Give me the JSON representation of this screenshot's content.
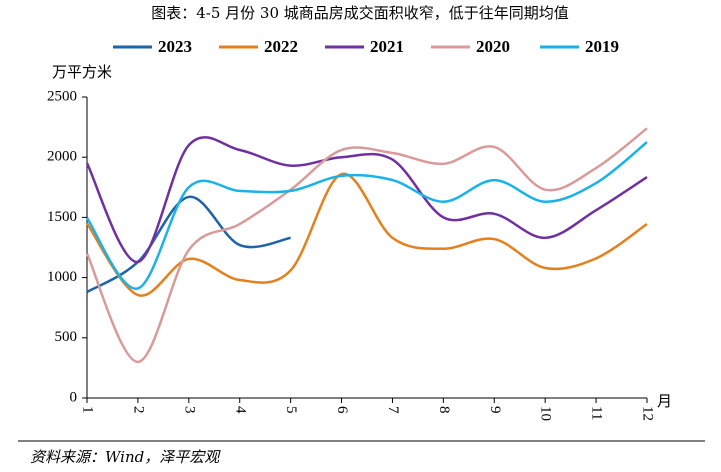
{
  "chart_data": {
    "type": "line",
    "title": "图表：4-5 月份 30 城商品房成交面积收窄，低于往年同期均值",
    "y_label": "万平方米",
    "x_label": "月",
    "source": "资料来源：Wind，泽平宏观",
    "categories": [
      "1",
      "2",
      "3",
      "4",
      "5",
      "6",
      "7",
      "8",
      "9",
      "10",
      "11",
      "12"
    ],
    "series": [
      {
        "name": "2023",
        "color": "#1f64a8",
        "values": [
          880,
          1130,
          1670,
          1270,
          1330,
          null,
          null,
          null,
          null,
          null,
          null,
          null
        ]
      },
      {
        "name": "2022",
        "color": "#e5801e",
        "values": [
          1450,
          855,
          1155,
          980,
          1060,
          1860,
          1330,
          1240,
          1320,
          1080,
          1160,
          1445
        ]
      },
      {
        "name": "2021",
        "color": "#7030a0",
        "values": [
          1950,
          1130,
          2100,
          2060,
          1930,
          2000,
          1980,
          1500,
          1530,
          1330,
          1560,
          1835
        ]
      },
      {
        "name": "2020",
        "color": "#d99a9a",
        "values": [
          1200,
          300,
          1230,
          1445,
          1730,
          2060,
          2035,
          1945,
          2085,
          1730,
          1910,
          2240
        ]
      },
      {
        "name": "2019",
        "color": "#1ab2e8",
        "values": [
          1495,
          910,
          1750,
          1720,
          1720,
          1845,
          1810,
          1630,
          1810,
          1630,
          1785,
          2125
        ]
      }
    ],
    "ylim": [
      0,
      2500
    ],
    "yticks": [
      0,
      500,
      1000,
      1500,
      2000,
      2500
    ]
  }
}
